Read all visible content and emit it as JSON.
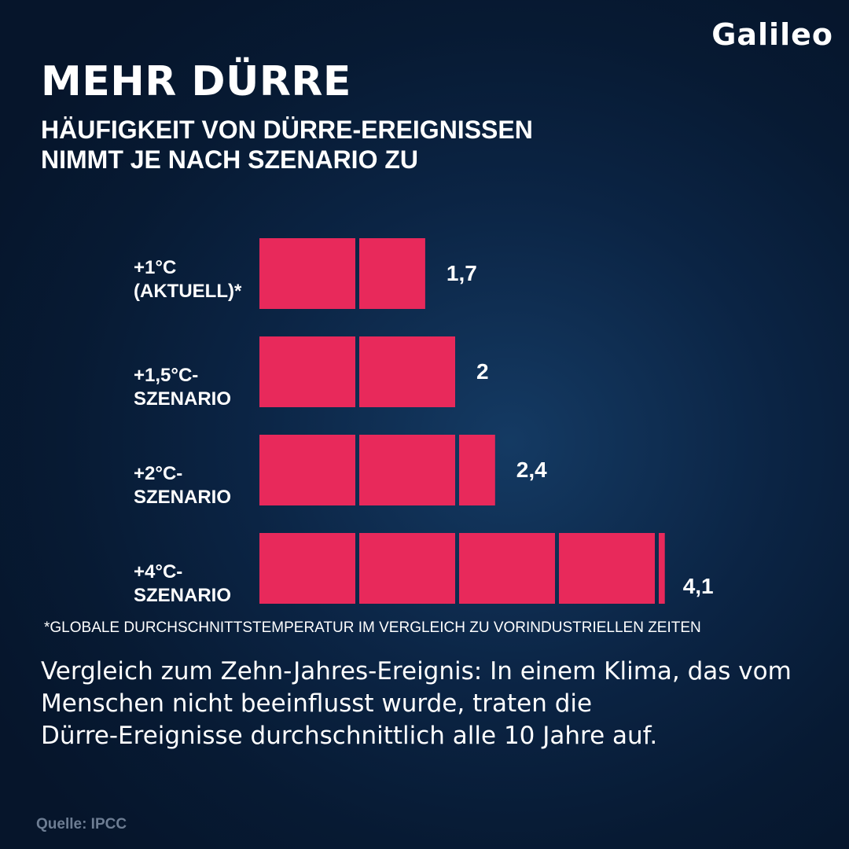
{
  "brand": {
    "logo_text": "Galileo"
  },
  "header": {
    "title": "MEHR DÜRRE",
    "subtitle_lines": [
      "HÄUFIGKEIT VON DÜRRE-EREIGNISSEN",
      "NIMMT JE NACH SZENARIO ZU"
    ]
  },
  "chart_data": {
    "type": "bar",
    "orientation": "horizontal",
    "categories": [
      [
        "+1°C",
        "(AKTUELL)*"
      ],
      [
        "+1,5°C-",
        "SZENARIO"
      ],
      [
        "+2°C-",
        "SZENARIO"
      ],
      [
        "+4°C-",
        "SZENARIO"
      ]
    ],
    "values": [
      1.7,
      2,
      2.4,
      4.1
    ],
    "value_labels": [
      "1,7",
      "2",
      "2,4",
      "4,1"
    ],
    "bar_color": "#e8295b",
    "grid": false
  },
  "footnote": "*GLOBALE DURCHSCHNITTSTEMPERATUR IM VERGLEICH ZU VORINDUSTRIELLEN ZEITEN",
  "note_lines": [
    "Vergleich zum Zehn-Jahres-Ereignis: In einem Klima, das vom",
    "Menschen nicht beeinflusst wurde, traten die",
    "Dürre-Ereignisse durchschnittlich alle 10 Jahre auf."
  ],
  "source": "Quelle: IPCC"
}
